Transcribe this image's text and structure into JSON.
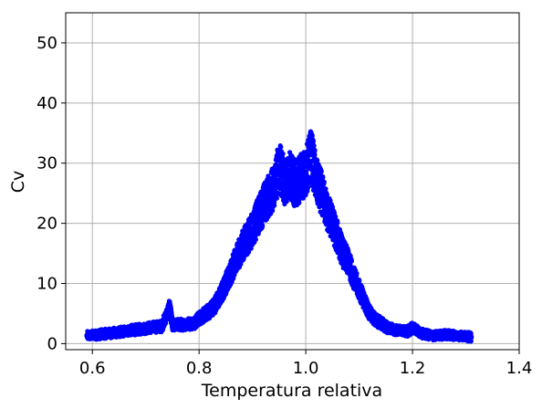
{
  "chart_data": {
    "type": "scatter",
    "xlabel": "Temperatura relativa",
    "ylabel": "Cv",
    "xlim": [
      0.55,
      1.4
    ],
    "ylim": [
      -1,
      55
    ],
    "xticks": [
      0.6,
      0.8,
      1.0,
      1.2,
      1.4
    ],
    "xtick_labels": [
      "0.6",
      "0.8",
      "1.0",
      "1.2",
      "1.4"
    ],
    "yticks": [
      0,
      10,
      20,
      30,
      40,
      50
    ],
    "ytick_labels": [
      "0",
      "10",
      "20",
      "30",
      "40",
      "50"
    ],
    "grid": true,
    "marker_color": "#0000ff",
    "series": [
      {
        "x": [
          0.59,
          0.61,
          0.63,
          0.65,
          0.67,
          0.69,
          0.71,
          0.73,
          0.745,
          0.75,
          0.77,
          0.79,
          0.8,
          0.81,
          0.82,
          0.83,
          0.84,
          0.85,
          0.86,
          0.87,
          0.88,
          0.89,
          0.9,
          0.91,
          0.92,
          0.93,
          0.94,
          0.95,
          0.96,
          0.97,
          0.98,
          0.99,
          1.0,
          1.01,
          1.02,
          1.03,
          1.04,
          1.05,
          1.06,
          1.07,
          1.08,
          1.09,
          1.1,
          1.11,
          1.12,
          1.13,
          1.14,
          1.15,
          1.17,
          1.19,
          1.2,
          1.22,
          1.24,
          1.26,
          1.28,
          1.3,
          1.31
        ],
        "y": [
          1.3,
          1.5,
          1.7,
          1.9,
          2.2,
          2.4,
          2.7,
          2.9,
          6.0,
          3.1,
          3.2,
          3.4,
          4.2,
          4.8,
          5.5,
          6.5,
          8.0,
          10.0,
          12.0,
          14.0,
          16.0,
          17.5,
          19.0,
          21.0,
          23.0,
          24.5,
          26.0,
          29.5,
          27.0,
          28.0,
          26.5,
          27.5,
          28.5,
          31.5,
          27.0,
          25.0,
          22.0,
          20.0,
          17.5,
          15.0,
          13.5,
          11.0,
          9.0,
          7.0,
          5.0,
          4.0,
          3.5,
          2.8,
          2.2,
          2.0,
          2.6,
          1.6,
          1.3,
          1.5,
          1.4,
          1.2,
          1.1
        ]
      }
    ]
  }
}
